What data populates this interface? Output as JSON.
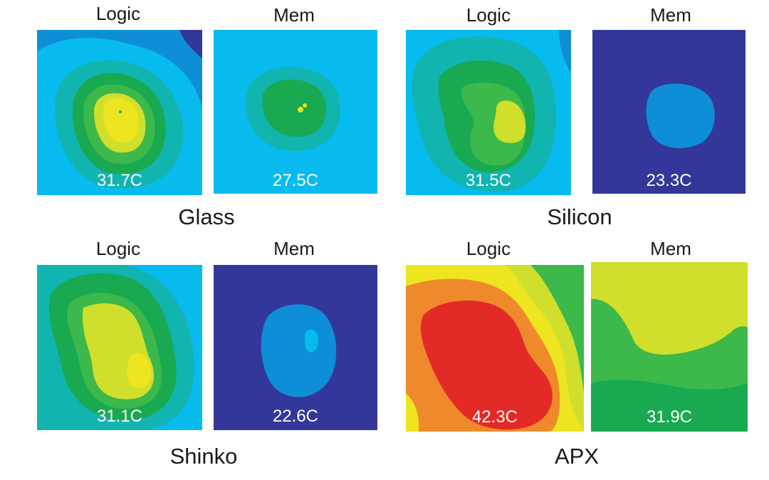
{
  "figure": {
    "panels": [
      {
        "group": "Glass",
        "chip": "Logic",
        "temperature": "31.7C"
      },
      {
        "group": "Glass",
        "chip": "Mem",
        "temperature": "27.5C"
      },
      {
        "group": "Silicon",
        "chip": "Logic",
        "temperature": "31.5C"
      },
      {
        "group": "Silicon",
        "chip": "Mem",
        "temperature": "23.3C"
      },
      {
        "group": "Shinko",
        "chip": "Logic",
        "temperature": "31.1C"
      },
      {
        "group": "Shinko",
        "chip": "Mem",
        "temperature": "22.6C"
      },
      {
        "group": "APX",
        "chip": "Logic",
        "temperature": "42.3C"
      },
      {
        "group": "APX",
        "chip": "Mem",
        "temperature": "31.9C"
      }
    ],
    "groups": [
      "Glass",
      "Silicon",
      "Shinko",
      "APX"
    ]
  },
  "colors": {
    "darkblue": "#34379a",
    "blue": "#0e8ed6",
    "lightblue": "#08bbee",
    "teal": "#12b4b0",
    "green": "#18a951",
    "lightgreen": "#3db84b",
    "yellowgreen": "#cfdf2c",
    "yellow": "#ede51f",
    "orange": "#ef8a2c",
    "red": "#e32a26"
  }
}
